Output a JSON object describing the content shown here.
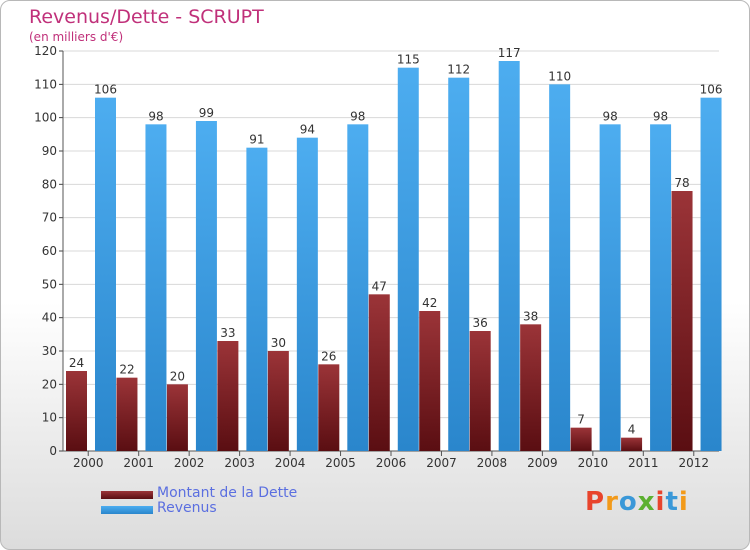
{
  "header": {
    "title": "Revenus/Dette - SCRUPT",
    "subtitle": "(en milliers d'€)"
  },
  "legend": {
    "debt_label": "Montant de la Dette",
    "revenue_label": "Revenus"
  },
  "logo": {
    "text": "Proxiti"
  },
  "colors": {
    "debt": "#7a1a1e",
    "revenue": "#3d9be0",
    "title": "#c0307a",
    "legend_text": "#5b6fe0"
  },
  "chart_data": {
    "type": "bar",
    "categories": [
      "2000",
      "2001",
      "2002",
      "2003",
      "2004",
      "2005",
      "2006",
      "2007",
      "2008",
      "2009",
      "2010",
      "2011",
      "2012"
    ],
    "series": [
      {
        "name": "Montant de la Dette",
        "values": [
          24,
          22,
          20,
          33,
          30,
          26,
          47,
          42,
          36,
          38,
          7,
          4,
          78
        ]
      },
      {
        "name": "Revenus",
        "values": [
          106,
          98,
          99,
          91,
          94,
          98,
          115,
          112,
          117,
          110,
          98,
          98,
          106
        ]
      }
    ],
    "title": "Revenus/Dette - SCRUPT",
    "ylabel": "(en milliers d'€)",
    "ylim": [
      0,
      120
    ],
    "yticks": [
      0,
      10,
      20,
      30,
      40,
      50,
      60,
      70,
      80,
      90,
      100,
      110,
      120
    ],
    "grid": true
  }
}
